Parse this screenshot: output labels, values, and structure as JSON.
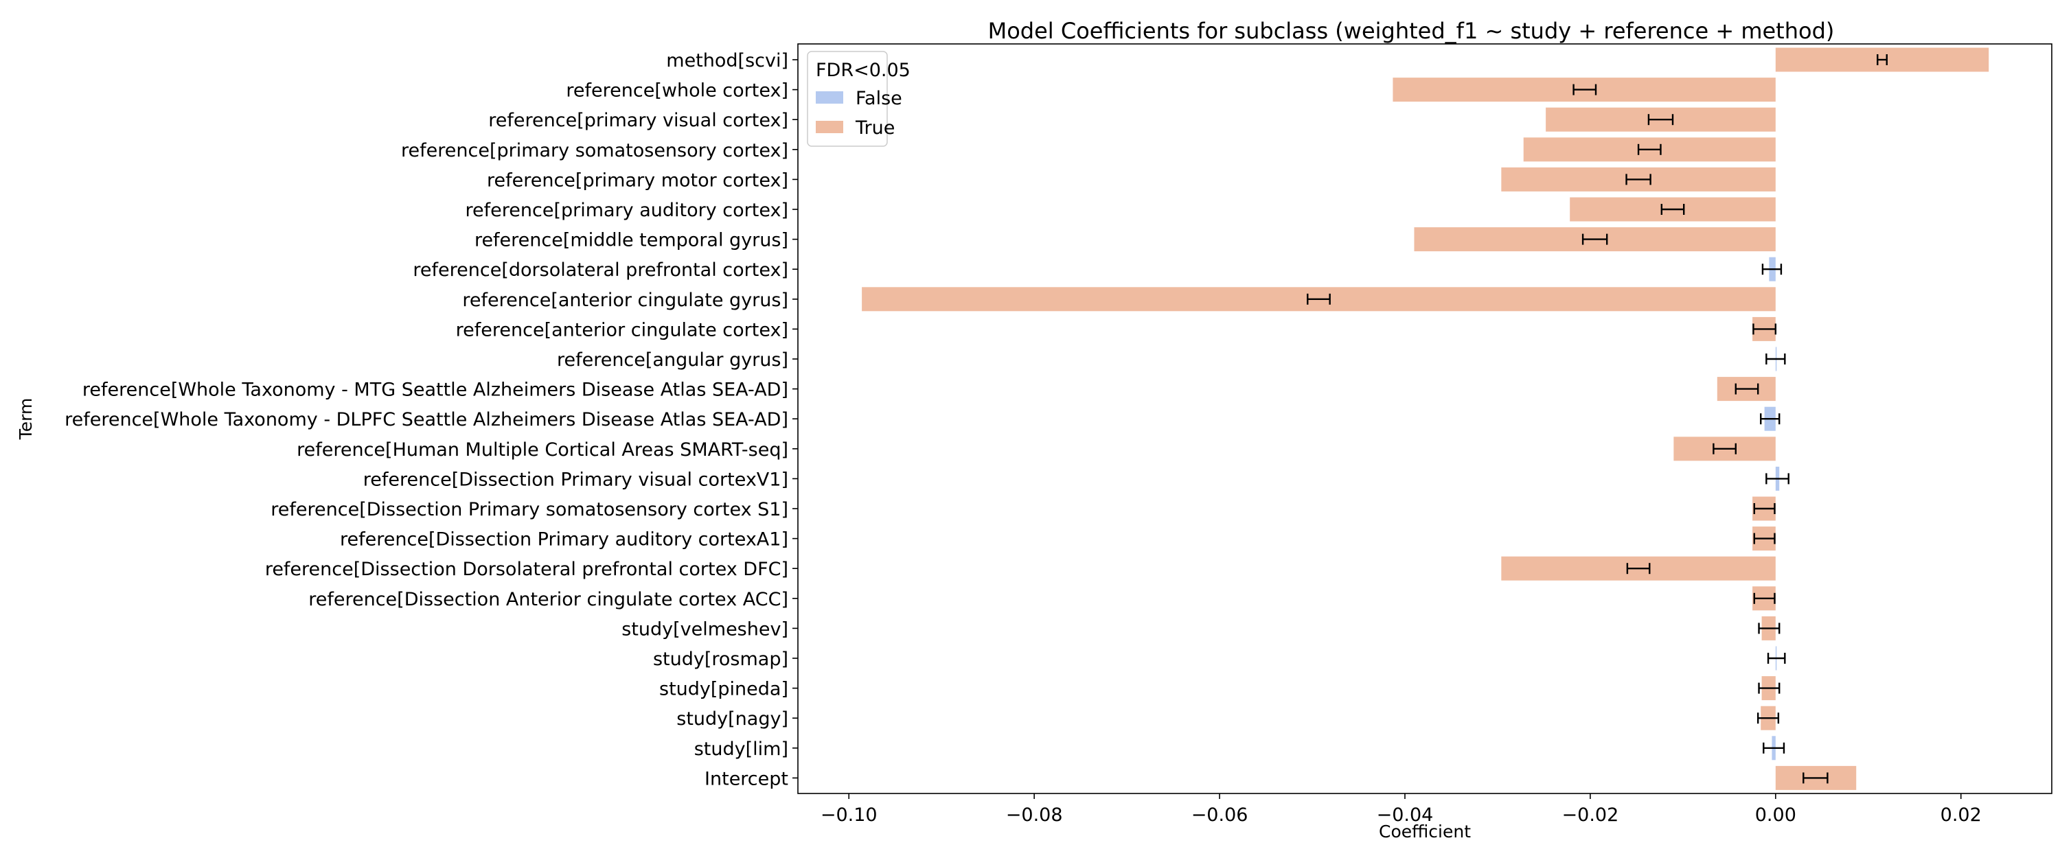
{
  "chart_data": {
    "type": "bar",
    "orientation": "horizontal",
    "title": "Model Coefficients for subclass (weighted_f1 ~ study + reference + method)",
    "xlabel": "Coefficient",
    "ylabel": "Term",
    "xlim": [
      -0.1055,
      0.0298
    ],
    "xticks": [
      -0.1,
      -0.08,
      -0.06,
      -0.04,
      -0.02,
      0.0,
      0.02
    ],
    "xtick_labels": [
      "−0.10",
      "−0.08",
      "−0.06",
      "−0.04",
      "−0.02",
      "0.00",
      "0.02"
    ],
    "grid": false,
    "legend": {
      "title": "FDR<0.05",
      "position": "top-left",
      "entries": [
        {
          "label": "False",
          "color": "#b4c9f0"
        },
        {
          "label": "True",
          "color": "#efbba0"
        }
      ]
    },
    "colors": {
      "False": "#b4c9f0",
      "True": "#efbba0"
    },
    "terms": [
      {
        "label": "method[scvi]",
        "value": 0.023,
        "err_center": 0.0115,
        "err_half": 0.0005,
        "fdr": "True"
      },
      {
        "label": "reference[whole cortex]",
        "value": -0.0413,
        "err_center": -0.0206,
        "err_half": 0.0012,
        "fdr": "True"
      },
      {
        "label": "reference[primary visual cortex]",
        "value": -0.0248,
        "err_center": -0.0124,
        "err_half": 0.0013,
        "fdr": "True"
      },
      {
        "label": "reference[primary somatosensory cortex]",
        "value": -0.0272,
        "err_center": -0.0136,
        "err_half": 0.0012,
        "fdr": "True"
      },
      {
        "label": "reference[primary motor cortex]",
        "value": -0.0296,
        "err_center": -0.0148,
        "err_half": 0.0013,
        "fdr": "True"
      },
      {
        "label": "reference[primary auditory cortex]",
        "value": -0.0222,
        "err_center": -0.0111,
        "err_half": 0.0012,
        "fdr": "True"
      },
      {
        "label": "reference[middle temporal gyrus]",
        "value": -0.039,
        "err_center": -0.0195,
        "err_half": 0.0013,
        "fdr": "True"
      },
      {
        "label": "reference[dorsolateral prefrontal cortex]",
        "value": -0.0007,
        "err_center": -0.0004,
        "err_half": 0.001,
        "fdr": "False"
      },
      {
        "label": "reference[anterior cingulate gyrus]",
        "value": -0.0986,
        "err_center": -0.0493,
        "err_half": 0.0012,
        "fdr": "True"
      },
      {
        "label": "reference[anterior cingulate cortex]",
        "value": -0.0025,
        "err_center": -0.0012,
        "err_half": 0.0012,
        "fdr": "True"
      },
      {
        "label": "reference[angular gyrus]",
        "value": 0.0,
        "err_center": 0.0,
        "err_half": 0.001,
        "fdr": "False"
      },
      {
        "label": "reference[Whole Taxonomy - MTG Seattle Alzheimers Disease Atlas SEA-AD]",
        "value": -0.0063,
        "err_center": -0.0031,
        "err_half": 0.0012,
        "fdr": "True"
      },
      {
        "label": "reference[Whole Taxonomy - DLPFC Seattle Alzheimers Disease Atlas SEA-AD]",
        "value": -0.0012,
        "err_center": -0.0006,
        "err_half": 0.001,
        "fdr": "False"
      },
      {
        "label": "reference[Human Multiple Cortical Areas SMART-seq]",
        "value": -0.011,
        "err_center": -0.0055,
        "err_half": 0.0012,
        "fdr": "True"
      },
      {
        "label": "reference[Dissection Primary visual cortexV1]",
        "value": 0.0004,
        "err_center": 0.0002,
        "err_half": 0.0012,
        "fdr": "False"
      },
      {
        "label": "reference[Dissection Primary somatosensory cortex S1]",
        "value": -0.0025,
        "err_center": -0.0012,
        "err_half": 0.0011,
        "fdr": "True"
      },
      {
        "label": "reference[Dissection Primary auditory cortexA1]",
        "value": -0.0025,
        "err_center": -0.0012,
        "err_half": 0.0011,
        "fdr": "True"
      },
      {
        "label": "reference[Dissection Dorsolateral prefrontal cortex DFC]",
        "value": -0.0296,
        "err_center": -0.0148,
        "err_half": 0.0012,
        "fdr": "True"
      },
      {
        "label": "reference[Dissection Anterior cingulate cortex ACC]",
        "value": -0.0025,
        "err_center": -0.0012,
        "err_half": 0.0011,
        "fdr": "True"
      },
      {
        "label": "study[velmeshev]",
        "value": -0.0015,
        "err_center": -0.0007,
        "err_half": 0.0011,
        "fdr": "True"
      },
      {
        "label": "study[rosmap]",
        "value": 0.0,
        "err_center": 0.0001,
        "err_half": 0.0009,
        "fdr": "False"
      },
      {
        "label": "study[pineda]",
        "value": -0.0015,
        "err_center": -0.0007,
        "err_half": 0.0011,
        "fdr": "True"
      },
      {
        "label": "study[nagy]",
        "value": -0.0016,
        "err_center": -0.0008,
        "err_half": 0.0011,
        "fdr": "True"
      },
      {
        "label": "study[lim]",
        "value": -0.0004,
        "err_center": -0.0002,
        "err_half": 0.0011,
        "fdr": "False"
      },
      {
        "label": "Intercept",
        "value": 0.0087,
        "err_center": 0.0043,
        "err_half": 0.0013,
        "fdr": "True"
      }
    ]
  }
}
